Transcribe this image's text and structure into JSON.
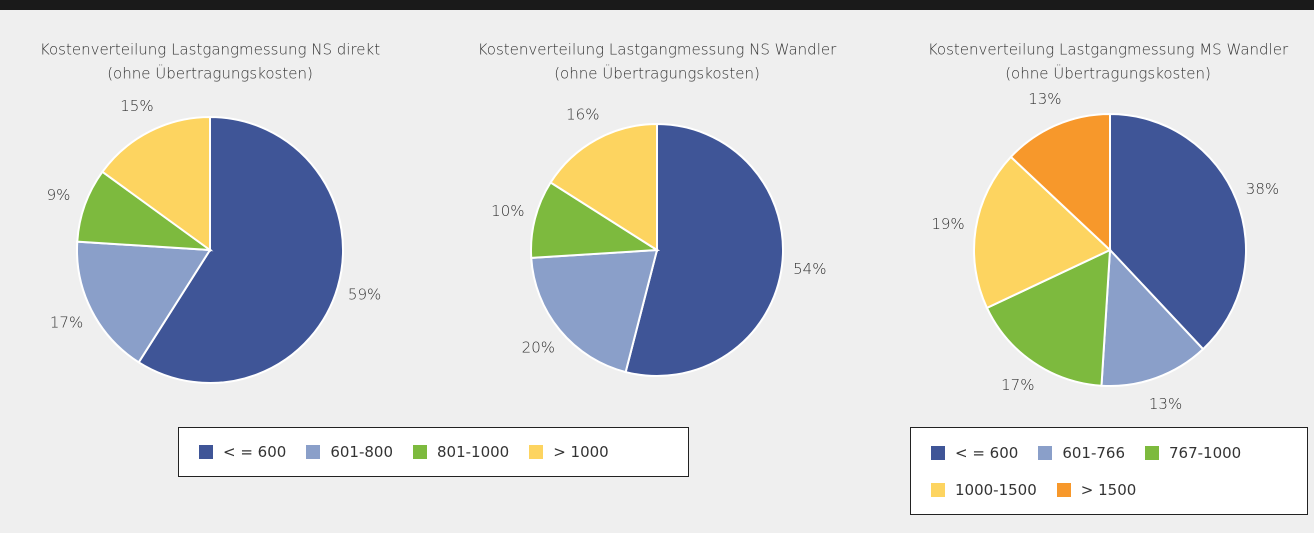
{
  "chart_data": [
    {
      "type": "pie",
      "title": "Kostenverteilung Lastgangmessung NS direkt",
      "subtitle": "(ohne Übertragungskosten)",
      "legend": 0,
      "values": [
        59,
        17,
        9,
        15
      ],
      "value_labels": [
        "59%",
        "17%",
        "9%",
        "15%"
      ]
    },
    {
      "type": "pie",
      "title": "Kostenverteilung Lastgangmessung NS Wandler",
      "subtitle": "(ohne Übertragungskosten)",
      "legend": 0,
      "values": [
        54,
        20,
        10,
        16
      ],
      "value_labels": [
        "54%",
        "20%",
        "10%",
        "16%"
      ]
    },
    {
      "type": "pie",
      "title": "Kostenverteilung Lastgangmessung MS Wandler",
      "subtitle": "(ohne Übertragungskosten)",
      "legend": 1,
      "values": [
        38,
        13,
        17,
        19,
        13
      ],
      "value_labels": [
        "38%",
        "13%",
        "17%",
        "19%",
        "13%"
      ]
    }
  ],
  "legends": [
    {
      "categories": [
        "< = 600",
        "601-800",
        "801-1000",
        "> 1000"
      ],
      "colors": [
        "#3f5597",
        "#8a9fc9",
        "#7dba3e",
        "#fdd460"
      ]
    },
    {
      "categories": [
        "< = 600",
        "601-766",
        "767-1000",
        "1000-1500",
        "> 1500"
      ],
      "colors": [
        "#3f5597",
        "#8a9fc9",
        "#7dba3e",
        "#fdd460",
        "#f7982b"
      ]
    }
  ]
}
